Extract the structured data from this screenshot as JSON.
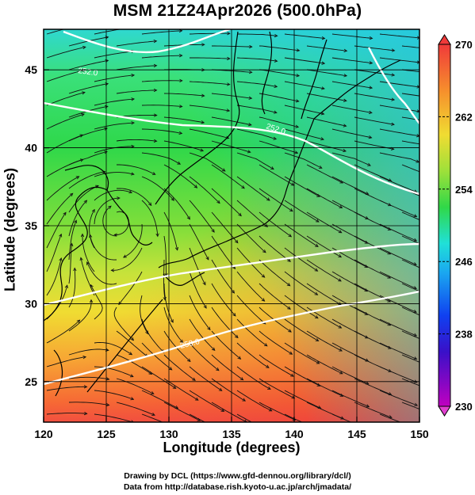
{
  "title": "MSM 21Z24Apr2026 (500.0hPa)",
  "credits": [
    "Drawing by DCL (https://www.gfd-dennou.org/library/dcl/)",
    "Data from http://database.rish.kyoto-u.ac.jp/arch/jmadata/"
  ],
  "chart_data": {
    "type": "heatmap",
    "title": "MSM 21Z24Apr2026 (500.0hPa)",
    "xlabel": "Longitude (degrees)",
    "ylabel": "Latitude  (degrees)",
    "xlim": [
      120,
      150
    ],
    "ylim": [
      22.4,
      47.6
    ],
    "xticks": [
      120,
      125,
      130,
      135,
      140,
      145,
      150
    ],
    "yticks": [
      25,
      30,
      35,
      40,
      45
    ],
    "grid": true,
    "colorbar": {
      "min": 230,
      "max": 270,
      "ticks": [
        230,
        238,
        246,
        254,
        262,
        270
      ],
      "extend": "both"
    },
    "contour_labels": [
      "252.0",
      "252.0",
      "258.0"
    ],
    "overlays": [
      "streamlines",
      "coastlines",
      "white isotherm contours"
    ]
  }
}
